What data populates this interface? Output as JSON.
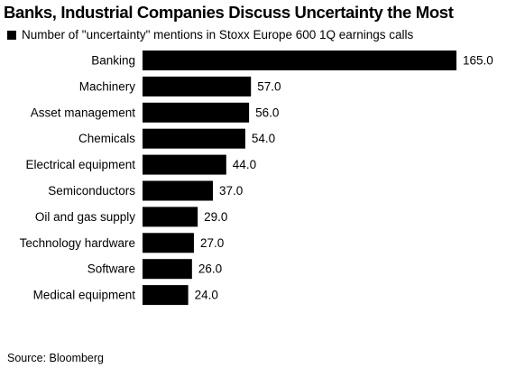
{
  "chart_data": {
    "type": "bar",
    "orientation": "horizontal",
    "title": "Banks, Industrial Companies Discuss Uncertainty the Most",
    "categories": [
      "Banking",
      "Machinery",
      "Asset management",
      "Chemicals",
      "Electrical equipment",
      "Semiconductors",
      "Oil and gas supply",
      "Technology hardware",
      "Software",
      "Medical equipment"
    ],
    "series": [
      {
        "name": "Number of \"uncertainty\" mentions in Stoxx Europe 600 1Q earnings calls",
        "values": [
          165.0,
          57.0,
          56.0,
          54.0,
          44.0,
          37.0,
          29.0,
          27.0,
          26.0,
          24.0
        ],
        "value_labels": [
          "165.0",
          "57.0",
          "56.0",
          "54.0",
          "44.0",
          "37.0",
          "29.0",
          "27.0",
          "26.0",
          "24.0"
        ],
        "color": "#000000"
      }
    ],
    "xlim": [
      0,
      165
    ],
    "grid": false,
    "legend_position": "top-left",
    "source": "Source: Bloomberg"
  }
}
